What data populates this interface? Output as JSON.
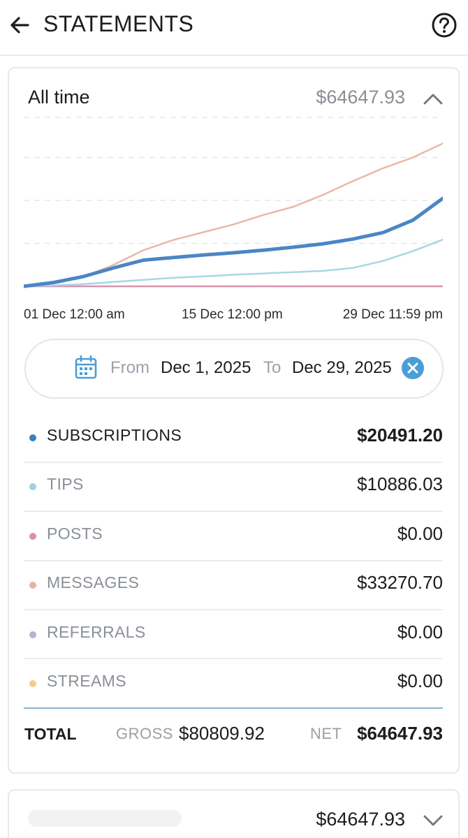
{
  "header": {
    "title": "STATEMENTS",
    "back_icon": "arrow-left-icon",
    "help_icon": "help-circle-icon"
  },
  "summary": {
    "range_label": "All time",
    "total": "$64647.93",
    "toggle_icon": "chevron-up-icon"
  },
  "chart_data": {
    "type": "line",
    "x_tick_labels": [
      "01 Dec 12:00 am",
      "15 Dec 12:00 pm",
      "29 Dec 11:59 pm"
    ],
    "x": [
      "Dec 1",
      "Dec 3",
      "Dec 5",
      "Dec 7",
      "Dec 9",
      "Dec 11",
      "Dec 13",
      "Dec 15",
      "Dec 17",
      "Dec 19",
      "Dec 21",
      "Dec 23",
      "Dec 25",
      "Dec 27",
      "Dec 29"
    ],
    "series": [
      {
        "name": "SUBSCRIPTIONS",
        "color": "#4a86c5",
        "values": [
          0,
          900,
          2300,
          4300,
          6100,
          6700,
          7300,
          7800,
          8400,
          9100,
          9900,
          11000,
          12500,
          15400,
          20491.2
        ]
      },
      {
        "name": "TIPS",
        "color": "#a8d6e6",
        "values": [
          0,
          200,
          500,
          1000,
          1500,
          2000,
          2300,
          2700,
          3000,
          3300,
          3600,
          4300,
          5900,
          8200,
          10886.03
        ]
      },
      {
        "name": "POSTS",
        "color": "#d993ac",
        "values": [
          0,
          0,
          0,
          0,
          0,
          0,
          0,
          0,
          0,
          0,
          0,
          0,
          0,
          0,
          0
        ]
      },
      {
        "name": "MESSAGES",
        "color": "#e9b8a6",
        "values": [
          0,
          800,
          2200,
          5000,
          8400,
          10800,
          12600,
          14400,
          16600,
          18500,
          21300,
          24500,
          27500,
          30000,
          33270.7
        ]
      }
    ],
    "ylim": [
      0,
      40000
    ],
    "grid": true,
    "legend": "none"
  },
  "date_filter": {
    "from_label": "From",
    "from_value": "Dec 1, 2025",
    "to_label": "To",
    "to_value": "Dec 29, 2025",
    "calendar_icon": "calendar-icon",
    "clear_icon": "close-circle-icon"
  },
  "categories": [
    {
      "label": "SUBSCRIPTIONS",
      "value": "$20491.20",
      "dot_color": "#3d7ebf",
      "active": true
    },
    {
      "label": "TIPS",
      "value": "$10886.03",
      "dot_color": "#9fd0df",
      "active": false
    },
    {
      "label": "POSTS",
      "value": "$0.00",
      "dot_color": "#d992a8",
      "active": false
    },
    {
      "label": "MESSAGES",
      "value": "$33270.70",
      "dot_color": "#e8b4a2",
      "active": false
    },
    {
      "label": "REFERRALS",
      "value": "$0.00",
      "dot_color": "#b7b1d6",
      "active": false
    },
    {
      "label": "STREAMS",
      "value": "$0.00",
      "dot_color": "#f0cd8e",
      "active": false
    }
  ],
  "totals": {
    "total_label": "TOTAL",
    "gross_label": "GROSS",
    "gross_value": "$80809.92",
    "net_label": "NET",
    "net_value": "$64647.93"
  },
  "next_card": {
    "total": "$64647.93",
    "toggle_icon": "chevron-down-icon"
  }
}
